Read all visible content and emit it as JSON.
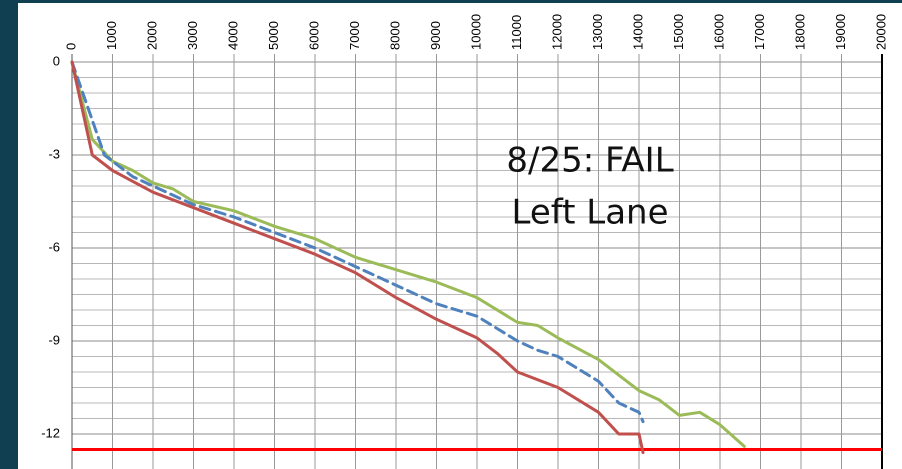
{
  "chart_data": {
    "type": "line",
    "annotations": [
      "8/25:  FAIL",
      "Left Lane"
    ],
    "xlim": [
      0,
      20000
    ],
    "xticks": [
      0,
      1000,
      2000,
      3000,
      4000,
      5000,
      6000,
      7000,
      8000,
      9000,
      10000,
      11000,
      12000,
      13000,
      14000,
      15000,
      16000,
      17000,
      18000,
      19000,
      20000
    ],
    "ylim": [
      -13,
      0
    ],
    "yticks": [
      0,
      -3,
      -6,
      -9,
      -12
    ],
    "yminorticks": [
      -0.5,
      -1,
      -1.5,
      -2,
      -2.5,
      -3.5,
      -4,
      -4.5,
      -5,
      -5.5,
      -6.5,
      -7,
      -7.5,
      -8,
      -8.5,
      -9.5,
      -10,
      -10.5,
      -11,
      -11.5,
      -12.5
    ],
    "grid": true,
    "hlines": [
      {
        "value": -12.5,
        "color": "#ff0000"
      }
    ],
    "series": [
      {
        "color": "#9bbb59",
        "dash": false,
        "x": [
          0,
          500,
          1000,
          1500,
          2000,
          2500,
          3000,
          4000,
          5000,
          6000,
          7000,
          8000,
          9000,
          10000,
          11000,
          11500,
          12000,
          13000,
          14000,
          14500,
          15000,
          15500,
          16000,
          16600
        ],
        "values": [
          0,
          -2.5,
          -3.2,
          -3.5,
          -3.9,
          -4.1,
          -4.5,
          -4.8,
          -5.3,
          -5.7,
          -6.3,
          -6.7,
          -7.1,
          -7.6,
          -8.4,
          -8.5,
          -8.9,
          -9.6,
          -10.6,
          -10.9,
          -11.4,
          -11.3,
          -11.7,
          -12.4
        ]
      },
      {
        "color": "#4f81bd",
        "dash": true,
        "x": [
          0,
          800,
          1500,
          2000,
          3000,
          4000,
          5000,
          6000,
          7000,
          8000,
          9000,
          10000,
          11000,
          11500,
          12000,
          13000,
          13500,
          14000,
          14100
        ],
        "values": [
          0,
          -3,
          -3.7,
          -4.0,
          -4.6,
          -5.0,
          -5.5,
          -6.0,
          -6.6,
          -7.2,
          -7.8,
          -8.2,
          -9.0,
          -9.3,
          -9.5,
          -10.3,
          -11.0,
          -11.3,
          -11.6
        ]
      },
      {
        "color": "#c0504d",
        "dash": false,
        "x": [
          0,
          500,
          1000,
          2000,
          3000,
          4000,
          5000,
          6000,
          7000,
          8000,
          9000,
          10000,
          10500,
          11000,
          12000,
          13000,
          13500,
          13900,
          14000,
          14100
        ],
        "values": [
          0,
          -3,
          -3.5,
          -4.2,
          -4.7,
          -5.2,
          -5.7,
          -6.2,
          -6.8,
          -7.6,
          -8.3,
          -8.9,
          -9.4,
          -10.0,
          -10.5,
          -11.3,
          -12.0,
          -12.0,
          -12.0,
          -12.6
        ]
      }
    ]
  }
}
